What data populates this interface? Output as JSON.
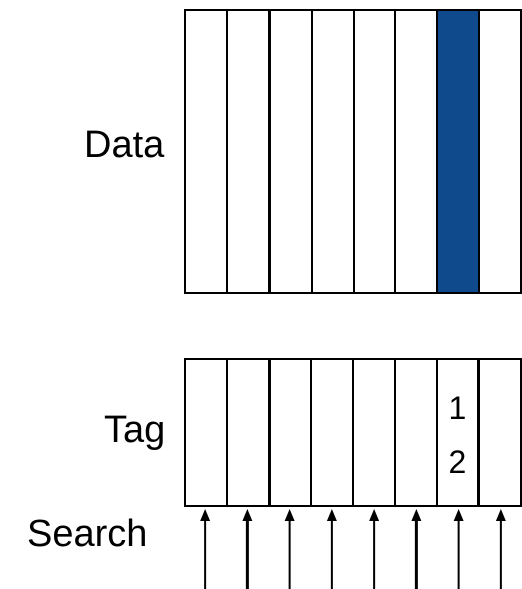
{
  "labels": {
    "data": "Data",
    "tag": "Tag",
    "search": "Search"
  },
  "columns": 8,
  "data_array": {
    "highlighted_column": 7,
    "highlight_color": "#0f4a8c"
  },
  "tag_array": {
    "column_7_entries": [
      "1",
      "2"
    ]
  },
  "search_arrows": {
    "count": 8,
    "icon": "up-arrow-icon"
  }
}
